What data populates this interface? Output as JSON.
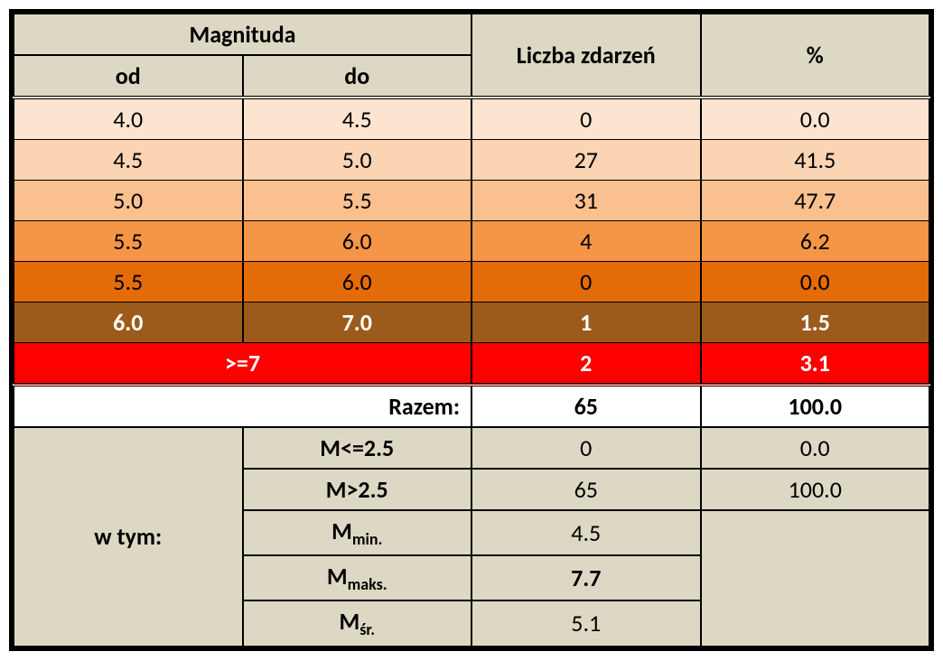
{
  "headers": {
    "magnitude": "Magnituda",
    "from": "od",
    "to": "do",
    "count": "Liczba zdarzeń",
    "percent": "%"
  },
  "rows": [
    {
      "from": "4.0",
      "to": "4.5",
      "count": "0",
      "pct": "0.0",
      "bg": "#fde4d0",
      "fg": "#000000",
      "bold": false
    },
    {
      "from": "4.5",
      "to": "5.0",
      "count": "27",
      "pct": "41.5",
      "bg": "#fbd4b4",
      "fg": "#000000",
      "bold": false
    },
    {
      "from": "5.0",
      "to": "5.5",
      "count": "31",
      "pct": "47.7",
      "bg": "#fac090",
      "fg": "#000000",
      "bold": false
    },
    {
      "from": "5.5",
      "to": "6.0",
      "count": "4",
      "pct": "6.2",
      "bg": "#f59546",
      "fg": "#000000",
      "bold": false
    },
    {
      "from": "5.5",
      "to": "6.0",
      "count": "0",
      "pct": "0.0",
      "bg": "#e36c09",
      "fg": "#000000",
      "bold": false
    },
    {
      "from": "6.0",
      "to": "7.0",
      "count": "1",
      "pct": "1.5",
      "bg": "#9c5b1a",
      "fg": "#ffffff",
      "bold": true
    }
  ],
  "last_row": {
    "mag": ">=7",
    "count": "2",
    "pct": "3.1",
    "bg": "#ff0000",
    "fg": "#ffffff",
    "bold": true
  },
  "total": {
    "label": "Razem:",
    "count": "65",
    "pct": "100.0"
  },
  "stats": {
    "rowlabel": "w tym:",
    "items": [
      {
        "label": "M<=2.5",
        "sub": "",
        "count": "0",
        "pct": "0.0",
        "bold": false
      },
      {
        "label": "M>2.5",
        "sub": "",
        "count": "65",
        "pct": "100.0",
        "bold": false
      },
      {
        "label": "M",
        "sub": "min.",
        "count": "4.5",
        "pct": "",
        "bold": false
      },
      {
        "label": "M",
        "sub": "maks.",
        "count": "7.7",
        "pct": "",
        "bold": true
      },
      {
        "label": "M",
        "sub": "śr.",
        "count": "5.1",
        "pct": "",
        "bold": false
      }
    ],
    "header_bg": "#ddd8c3"
  },
  "colors": {
    "header_bg": "#ddd8c3",
    "border": "#000000"
  }
}
